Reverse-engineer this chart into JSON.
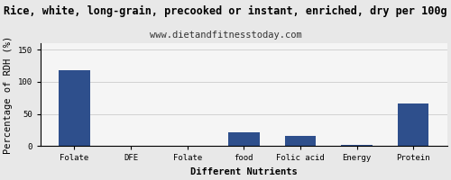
{
  "title": "Rice, white, long-grain, precooked or instant, enriched, dry per 100g",
  "subtitle": "www.dietandfitnesstoday.com",
  "xlabel": "Different Nutrients",
  "ylabel": "Percentage of RDH (%)",
  "categories": [
    "Folate",
    "DFE",
    "Folate",
    "food",
    "Folic acid",
    "Energy",
    "Protein"
  ],
  "values": [
    118,
    0.8,
    0.8,
    21,
    16,
    2.0,
    66
  ],
  "bar_color": "#2e4f8c",
  "ylim": [
    0,
    160
  ],
  "yticks": [
    0,
    50,
    100,
    150
  ],
  "background_color": "#e8e8e8",
  "plot_bg_color": "#f5f5f5",
  "title_fontsize": 8.5,
  "subtitle_fontsize": 7.5,
  "axis_label_fontsize": 7.5,
  "tick_fontsize": 6.5
}
